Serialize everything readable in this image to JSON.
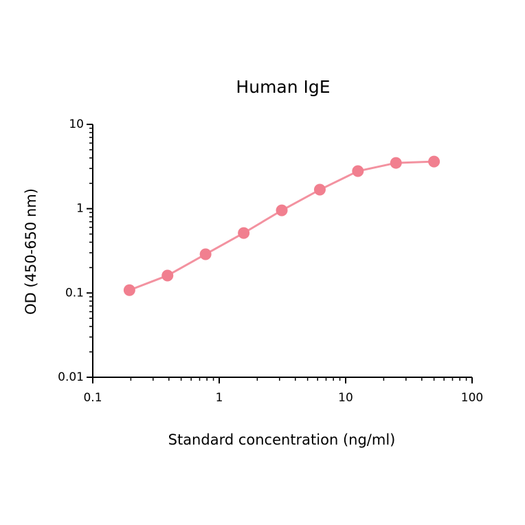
{
  "chart_data": {
    "type": "line",
    "title": "Human IgE",
    "x_label": "Standard concentration (ng/ml)",
    "y_label": "OD (450-650 nm)",
    "x": [
      0.195,
      0.39,
      0.78,
      1.5625,
      3.125,
      6.25,
      12.5,
      25,
      50
    ],
    "series": [
      {
        "name": null,
        "color": "#f17f8f",
        "values": [
          0.108,
          0.161,
          0.288,
          0.514,
          0.955,
          1.68,
          2.79,
          3.49,
          3.62
        ]
      }
    ],
    "x_log": true,
    "y_log": true,
    "xlim": [
      0.1,
      100
    ],
    "xticks": [
      0.1,
      1,
      10,
      100
    ],
    "ylim": [
      0.01,
      10
    ],
    "yticks": [
      0.01,
      0.1,
      1,
      10
    ],
    "grid": false
  }
}
